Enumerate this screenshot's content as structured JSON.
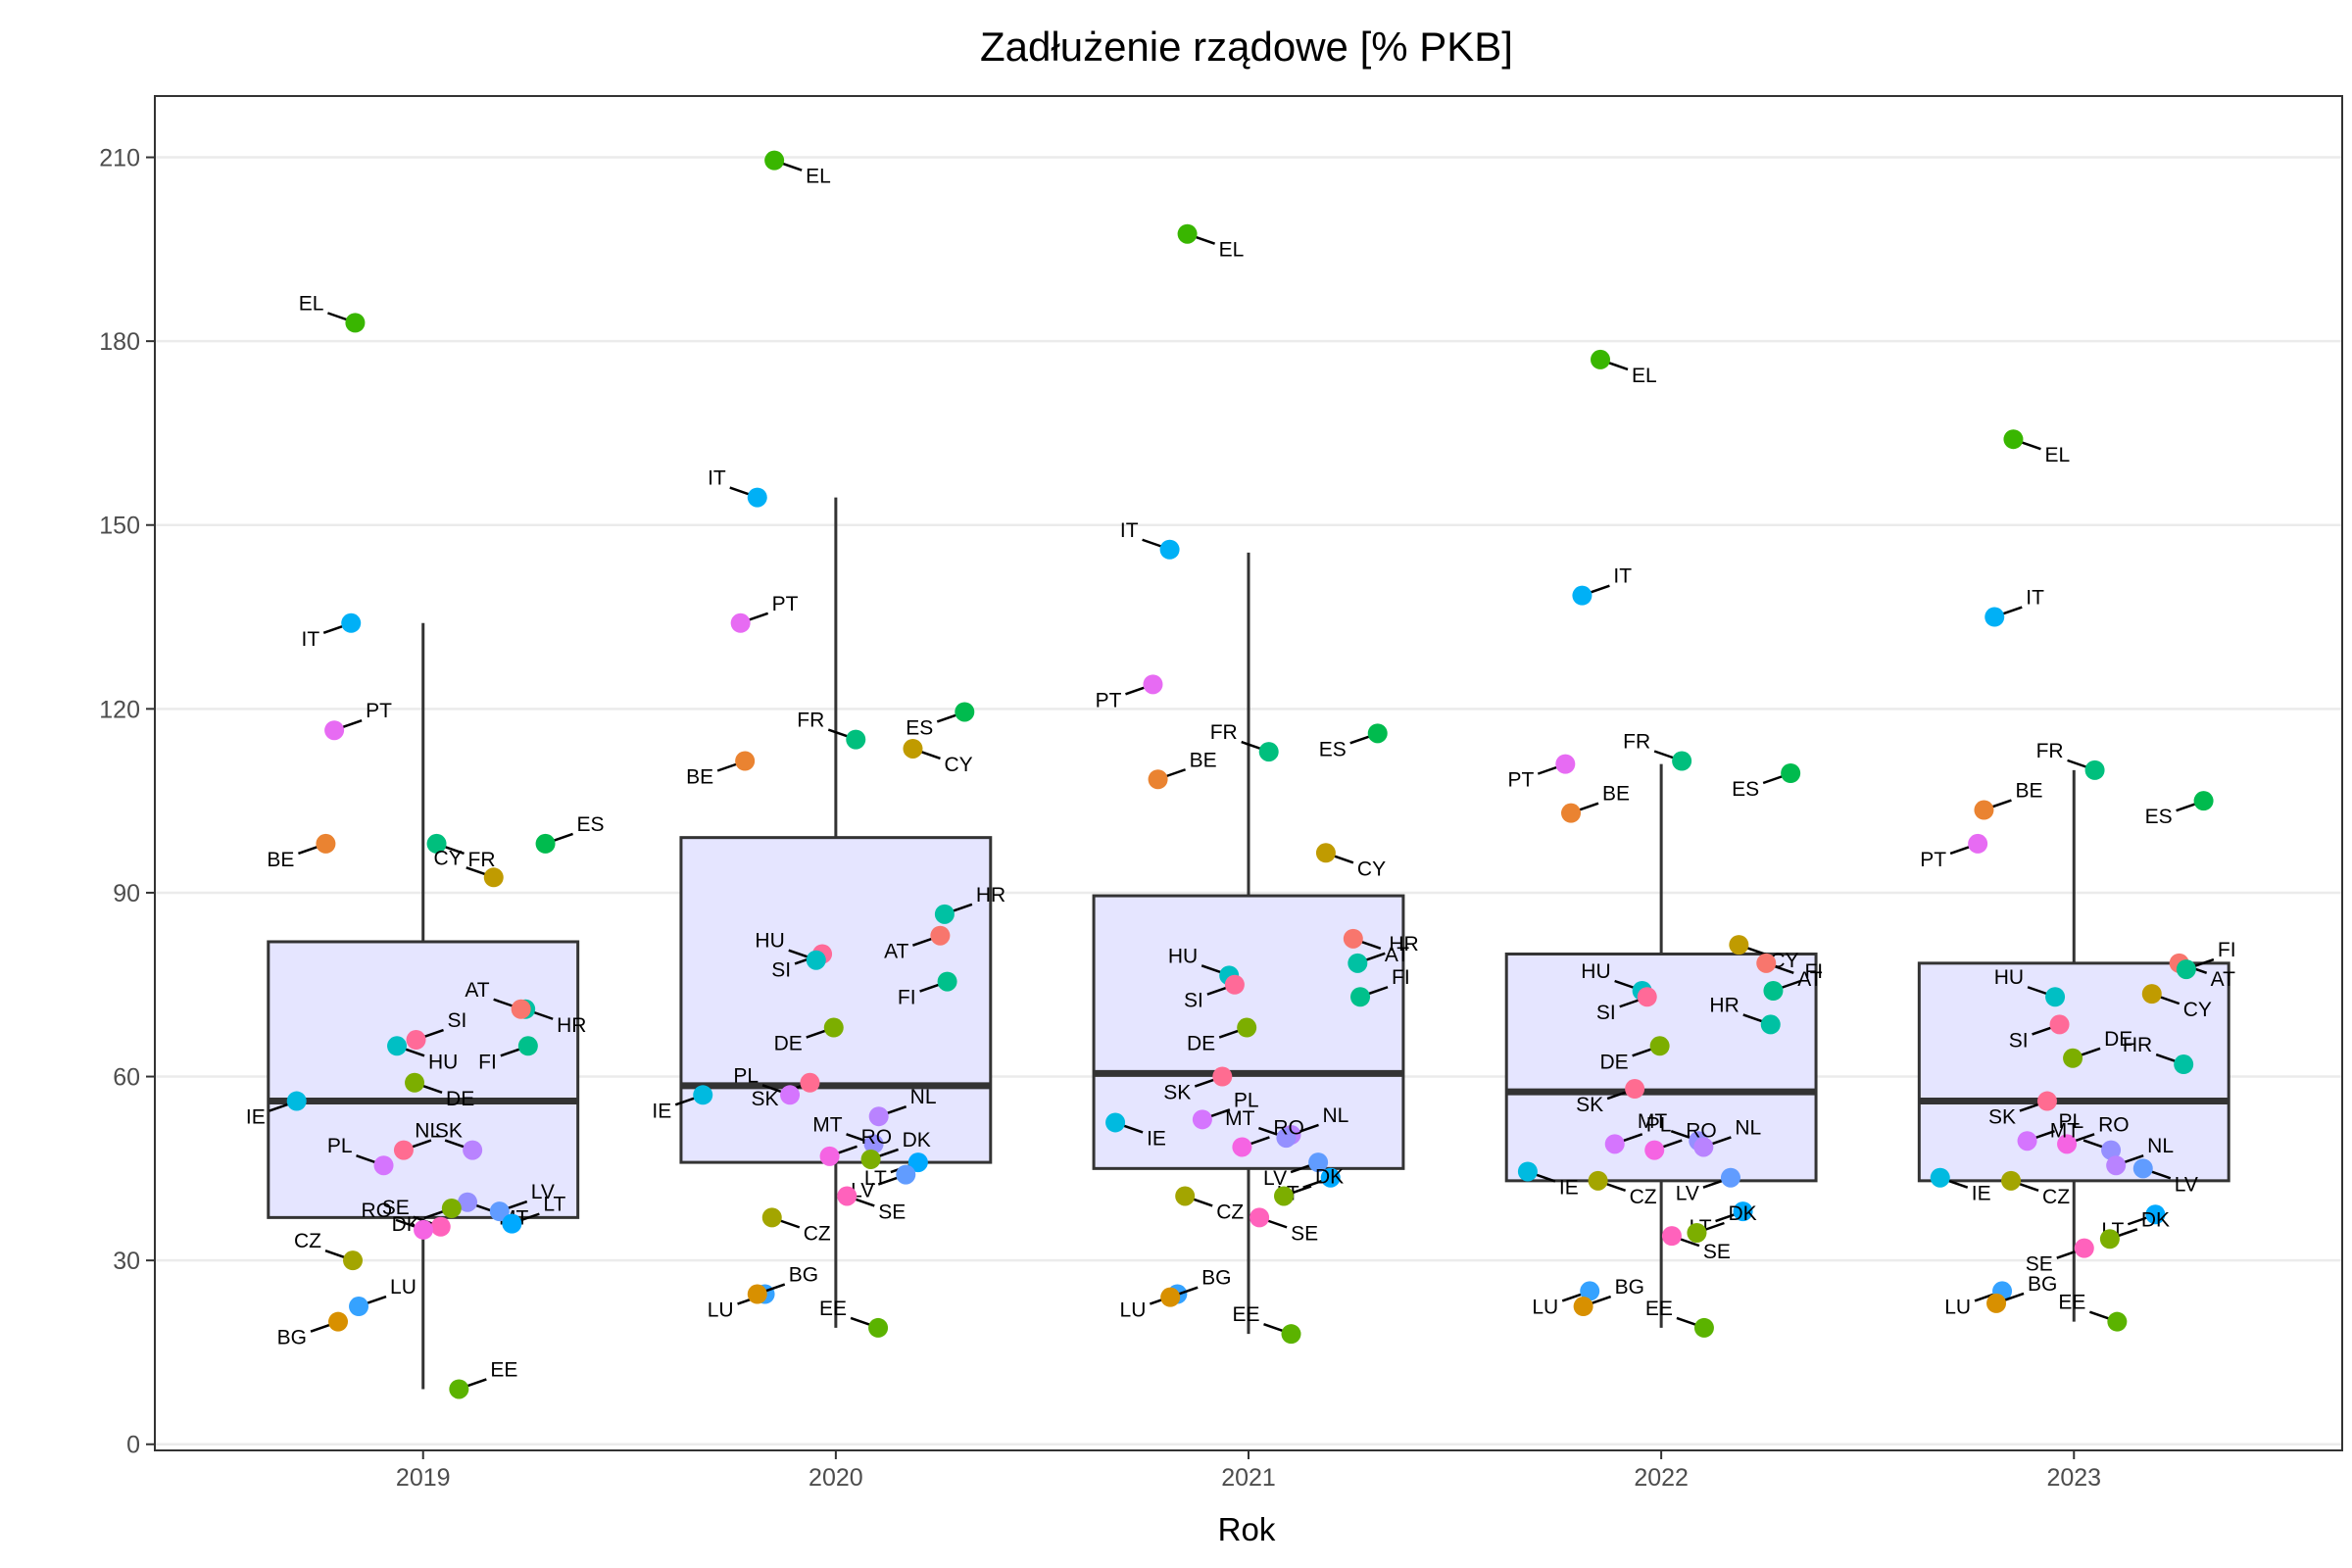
{
  "chart_data": {
    "type": "box",
    "title": "Zadłużenie rządowe [% PKB]",
    "xlabel": "Rok",
    "ylabel": "",
    "ylim": [
      -1,
      220
    ],
    "yticks": [
      0,
      30,
      60,
      90,
      120,
      150,
      180,
      210
    ],
    "categories": [
      "2019",
      "2020",
      "2021",
      "2022",
      "2023"
    ],
    "grid": "horizontal major",
    "legend": "none",
    "box_fill": "#e5e5ff",
    "box_stroke": "#333333",
    "label_colors": {
      "AT": "#f8766d",
      "BE": "#ea8331",
      "BG": "#d89000",
      "CY": "#c09b00",
      "CZ": "#a3a500",
      "DE": "#7cae00",
      "DK": "#7cae00",
      "EE": "#5bb300",
      "EL": "#39b600",
      "ES": "#00bb4e",
      "FI": "#00c08b",
      "FR": "#00bf7d",
      "HR": "#00c1a3",
      "HU": "#00bfc4",
      "IE": "#00bae0",
      "IT": "#00b0f6",
      "LT": "#00a9ff",
      "LU": "#35a2ff",
      "LV": "#619cff",
      "MT": "#9590ff",
      "NL": "#b983ff",
      "PL": "#d575fe",
      "PT": "#e76bf3",
      "RO": "#f564e3",
      "SE": "#ff62bc",
      "SI": "#ff6a98",
      "SK": "#ff6c91"
    },
    "boxes": [
      {
        "year": "2019",
        "lower_whisker": 9,
        "q1": 37,
        "median": 56,
        "q3": 82,
        "upper_whisker": 134
      },
      {
        "year": "2020",
        "lower_whisker": 19,
        "q1": 46,
        "median": 58.5,
        "q3": 99,
        "upper_whisker": 154.5
      },
      {
        "year": "2021",
        "lower_whisker": 18,
        "q1": 45,
        "median": 60.5,
        "q3": 89.5,
        "upper_whisker": 145.5
      },
      {
        "year": "2022",
        "lower_whisker": 19,
        "q1": 43,
        "median": 57.5,
        "q3": 80,
        "upper_whisker": 111
      },
      {
        "year": "2023",
        "lower_whisker": 20,
        "q1": 43,
        "median": 56,
        "q3": 78.5,
        "upper_whisker": 110
      }
    ],
    "points": {
      "2019": [
        {
          "c": "EL",
          "v": 183
        },
        {
          "c": "IT",
          "v": 134
        },
        {
          "c": "PT",
          "v": 116.5
        },
        {
          "c": "FR",
          "v": 98
        },
        {
          "c": "ES",
          "v": 98
        },
        {
          "c": "BE",
          "v": 98
        },
        {
          "c": "CY",
          "v": 92.5
        },
        {
          "c": "HR",
          "v": 71
        },
        {
          "c": "AT",
          "v": 71
        },
        {
          "c": "SI",
          "v": 66
        },
        {
          "c": "HU",
          "v": 65
        },
        {
          "c": "FI",
          "v": 65
        },
        {
          "c": "DE",
          "v": 59
        },
        {
          "c": "IE",
          "v": 56
        },
        {
          "c": "NL",
          "v": 48
        },
        {
          "c": "SK",
          "v": 48
        },
        {
          "c": "PL",
          "v": 45.5
        },
        {
          "c": "MT",
          "v": 39.5
        },
        {
          "c": "LV",
          "v": 38
        },
        {
          "c": "DK",
          "v": 38.5
        },
        {
          "c": "LT",
          "v": 36
        },
        {
          "c": "SE",
          "v": 35.5
        },
        {
          "c": "RO",
          "v": 35
        },
        {
          "c": "CZ",
          "v": 30
        },
        {
          "c": "LU",
          "v": 22.5
        },
        {
          "c": "BG",
          "v": 20
        },
        {
          "c": "EE",
          "v": 9
        }
      ],
      "2020": [
        {
          "c": "EL",
          "v": 209.5
        },
        {
          "c": "IT",
          "v": 154.5
        },
        {
          "c": "PT",
          "v": 134
        },
        {
          "c": "ES",
          "v": 119.5
        },
        {
          "c": "CY",
          "v": 113.5
        },
        {
          "c": "FR",
          "v": 115
        },
        {
          "c": "BE",
          "v": 111.5
        },
        {
          "c": "HR",
          "v": 86.5
        },
        {
          "c": "AT",
          "v": 83
        },
        {
          "c": "SI",
          "v": 80
        },
        {
          "c": "HU",
          "v": 79
        },
        {
          "c": "FI",
          "v": 75.5
        },
        {
          "c": "DE",
          "v": 68
        },
        {
          "c": "SK",
          "v": 59
        },
        {
          "c": "PL",
          "v": 57
        },
        {
          "c": "IE",
          "v": 57
        },
        {
          "c": "NL",
          "v": 53.5
        },
        {
          "c": "MT",
          "v": 49
        },
        {
          "c": "RO",
          "v": 47
        },
        {
          "c": "DK",
          "v": 46.5
        },
        {
          "c": "LT",
          "v": 46
        },
        {
          "c": "LV",
          "v": 44
        },
        {
          "c": "SE",
          "v": 40.5
        },
        {
          "c": "CZ",
          "v": 37
        },
        {
          "c": "LU",
          "v": 24.5
        },
        {
          "c": "BG",
          "v": 24.5
        },
        {
          "c": "EE",
          "v": 19
        }
      ],
      "2021": [
        {
          "c": "EL",
          "v": 197.5
        },
        {
          "c": "IT",
          "v": 146
        },
        {
          "c": "PT",
          "v": 124
        },
        {
          "c": "ES",
          "v": 116
        },
        {
          "c": "FR",
          "v": 113
        },
        {
          "c": "BE",
          "v": 108.5
        },
        {
          "c": "CY",
          "v": 96.5
        },
        {
          "c": "AT",
          "v": 82.5
        },
        {
          "c": "HR",
          "v": 78.5
        },
        {
          "c": "HU",
          "v": 76.5
        },
        {
          "c": "SI",
          "v": 75
        },
        {
          "c": "FI",
          "v": 73
        },
        {
          "c": "DE",
          "v": 68
        },
        {
          "c": "SK",
          "v": 60
        },
        {
          "c": "PL",
          "v": 53
        },
        {
          "c": "IE",
          "v": 52.5
        },
        {
          "c": "NL",
          "v": 50.5
        },
        {
          "c": "MT",
          "v": 50
        },
        {
          "c": "RO",
          "v": 48.5
        },
        {
          "c": "LV",
          "v": 46
        },
        {
          "c": "LT",
          "v": 43.5
        },
        {
          "c": "CZ",
          "v": 40.5
        },
        {
          "c": "DK",
          "v": 40.5
        },
        {
          "c": "SE",
          "v": 37
        },
        {
          "c": "LU",
          "v": 24.5
        },
        {
          "c": "BG",
          "v": 24
        },
        {
          "c": "EE",
          "v": 18
        }
      ],
      "2022": [
        {
          "c": "EL",
          "v": 177
        },
        {
          "c": "IT",
          "v": 138.5
        },
        {
          "c": "PT",
          "v": 111
        },
        {
          "c": "FR",
          "v": 111.5
        },
        {
          "c": "ES",
          "v": 109.5
        },
        {
          "c": "BE",
          "v": 103
        },
        {
          "c": "CY",
          "v": 81.5
        },
        {
          "c": "AT",
          "v": 78.5
        },
        {
          "c": "FI",
          "v": 74
        },
        {
          "c": "HU",
          "v": 74
        },
        {
          "c": "SI",
          "v": 73
        },
        {
          "c": "HR",
          "v": 68.5
        },
        {
          "c": "DE",
          "v": 65
        },
        {
          "c": "SK",
          "v": 58
        },
        {
          "c": "MT",
          "v": 49.5
        },
        {
          "c": "PL",
          "v": 49
        },
        {
          "c": "NL",
          "v": 48.5
        },
        {
          "c": "RO",
          "v": 48
        },
        {
          "c": "IE",
          "v": 44.5
        },
        {
          "c": "CZ",
          "v": 43
        },
        {
          "c": "LV",
          "v": 43.5
        },
        {
          "c": "LT",
          "v": 38
        },
        {
          "c": "DK",
          "v": 34.5
        },
        {
          "c": "SE",
          "v": 34
        },
        {
          "c": "LU",
          "v": 25
        },
        {
          "c": "BG",
          "v": 22.5
        },
        {
          "c": "EE",
          "v": 19
        }
      ],
      "2023": [
        {
          "c": "EL",
          "v": 164
        },
        {
          "c": "IT",
          "v": 135
        },
        {
          "c": "FR",
          "v": 110
        },
        {
          "c": "ES",
          "v": 105
        },
        {
          "c": "BE",
          "v": 103.5
        },
        {
          "c": "PT",
          "v": 98
        },
        {
          "c": "AT",
          "v": 78.5
        },
        {
          "c": "FI",
          "v": 77.5
        },
        {
          "c": "CY",
          "v": 73.5
        },
        {
          "c": "HU",
          "v": 73
        },
        {
          "c": "SI",
          "v": 68.5
        },
        {
          "c": "DE",
          "v": 63
        },
        {
          "c": "HR",
          "v": 62
        },
        {
          "c": "SK",
          "v": 56
        },
        {
          "c": "PL",
          "v": 49.5
        },
        {
          "c": "RO",
          "v": 49
        },
        {
          "c": "MT",
          "v": 48
        },
        {
          "c": "NL",
          "v": 45.5
        },
        {
          "c": "LV",
          "v": 45
        },
        {
          "c": "IE",
          "v": 43.5
        },
        {
          "c": "CZ",
          "v": 43
        },
        {
          "c": "LT",
          "v": 37.5
        },
        {
          "c": "DK",
          "v": 33.5
        },
        {
          "c": "SE",
          "v": 32
        },
        {
          "c": "LU",
          "v": 25
        },
        {
          "c": "BG",
          "v": 23
        },
        {
          "c": "EE",
          "v": 20
        }
      ]
    }
  }
}
